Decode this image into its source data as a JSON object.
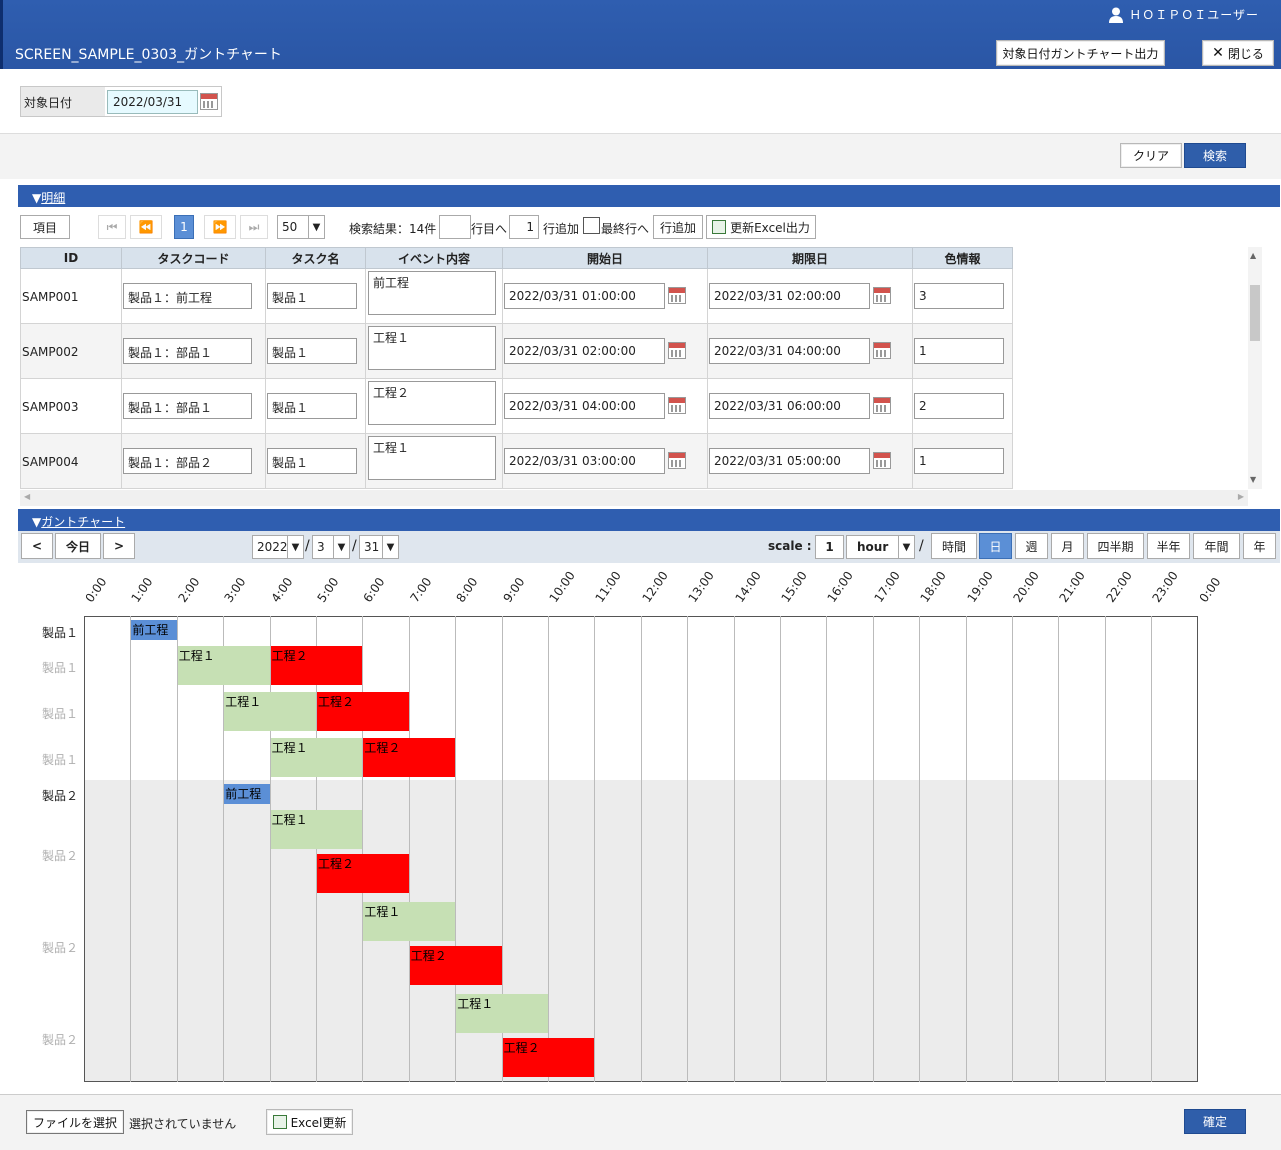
{
  "header": {
    "user": "ＨＯＩＰＯＩユーザー",
    "title": "SCREEN_SAMPLE_0303_ガントチャート",
    "gantt_output_label": "対象日付ガントチャート出力",
    "close_label": "閉じる"
  },
  "condition": {
    "label": "対象日付",
    "date": "2022/03/31"
  },
  "actions": {
    "clear": "クリア",
    "search": "検索"
  },
  "detail": {
    "section": "明細",
    "item_button": "項目",
    "page": "1",
    "page_size": "50",
    "result_text": "検索結果：14件",
    "row_to": "",
    "row_to_label": "行目へ",
    "add_count": "1",
    "add_label": "行追加",
    "last_row_label": "最終行へ",
    "add_row_button": "行追加",
    "excel_output": "更新Excel出力",
    "columns": [
      "ID",
      "タスクコード",
      "タスク名",
      "イベント内容",
      "開始日",
      "期限日",
      "色情報"
    ],
    "rows": [
      {
        "id": "SAMP001",
        "code": "製品１：前工程",
        "name": "製品１",
        "event": "前工程",
        "start": "2022/03/31 01:00:00",
        "end": "2022/03/31 02:00:00",
        "color": "3"
      },
      {
        "id": "SAMP002",
        "code": "製品１：部品１",
        "name": "製品１",
        "event": "工程１",
        "start": "2022/03/31 02:00:00",
        "end": "2022/03/31 04:00:00",
        "color": "1"
      },
      {
        "id": "SAMP003",
        "code": "製品１：部品１",
        "name": "製品１",
        "event": "工程２",
        "start": "2022/03/31 04:00:00",
        "end": "2022/03/31 06:00:00",
        "color": "2"
      },
      {
        "id": "SAMP004",
        "code": "製品１：部品２",
        "name": "製品１",
        "event": "工程１",
        "start": "2022/03/31 03:00:00",
        "end": "2022/03/31 05:00:00",
        "color": "1"
      }
    ]
  },
  "gantt": {
    "section": "ガントチャート",
    "prev": "<",
    "today": "今日",
    "next": ">",
    "year": "2022",
    "month": "3",
    "day": "31",
    "sep": "/",
    "scale_label": "scale :",
    "scale_value": "1",
    "scale_unit": "hour",
    "view_buttons": [
      "時間",
      "日",
      "週",
      "月",
      "四半期",
      "半年",
      "年間",
      "年"
    ],
    "active_view": "日",
    "hours": [
      "0:00",
      "1:00",
      "2:00",
      "3:00",
      "4:00",
      "5:00",
      "6:00",
      "7:00",
      "8:00",
      "9:00",
      "10:00",
      "11:00",
      "12:00",
      "13:00",
      "14:00",
      "15:00",
      "16:00",
      "17:00",
      "18:00",
      "19:00",
      "20:00",
      "21:00",
      "22:00",
      "23:00",
      "0:00"
    ],
    "row_labels": [
      {
        "text": "製品１",
        "muted": false
      },
      {
        "text": "製品１",
        "muted": true
      },
      {
        "text": "製品１",
        "muted": true
      },
      {
        "text": "製品１",
        "muted": true
      },
      {
        "text": "製品２",
        "muted": false
      },
      {
        "text": "製品２",
        "muted": true
      },
      {
        "text": "製品２",
        "muted": true
      },
      {
        "text": "製品２",
        "muted": true
      }
    ],
    "bars": [
      {
        "label": "前工程",
        "start": 1,
        "end": 2,
        "color": "#5b8fd6"
      },
      {
        "label": "工程１",
        "start": 2,
        "end": 4,
        "color": "#c6e0b4"
      },
      {
        "label": "工程２",
        "start": 4,
        "end": 6,
        "color": "#ff0000"
      },
      {
        "label": "工程１",
        "start": 3,
        "end": 5,
        "color": "#c6e0b4"
      },
      {
        "label": "工程２",
        "start": 5,
        "end": 7,
        "color": "#ff0000"
      },
      {
        "label": "工程１",
        "start": 4,
        "end": 6,
        "color": "#c6e0b4"
      },
      {
        "label": "工程２",
        "start": 6,
        "end": 8,
        "color": "#ff0000"
      },
      {
        "label": "前工程",
        "start": 3,
        "end": 4,
        "color": "#5b8fd6"
      },
      {
        "label": "工程１",
        "start": 4,
        "end": 6,
        "color": "#c6e0b4"
      },
      {
        "label": "工程２",
        "start": 5,
        "end": 7,
        "color": "#ff0000"
      },
      {
        "label": "工程１",
        "start": 6,
        "end": 8,
        "color": "#c6e0b4"
      },
      {
        "label": "工程２",
        "start": 7,
        "end": 9,
        "color": "#ff0000"
      },
      {
        "label": "工程１",
        "start": 8,
        "end": 10,
        "color": "#c6e0b4"
      },
      {
        "label": "工程２",
        "start": 9,
        "end": 11,
        "color": "#ff0000"
      }
    ]
  },
  "footer": {
    "file_button": "ファイルを選択",
    "no_file": "選択されていません",
    "excel_update": "Excel更新",
    "confirm": "確定"
  }
}
